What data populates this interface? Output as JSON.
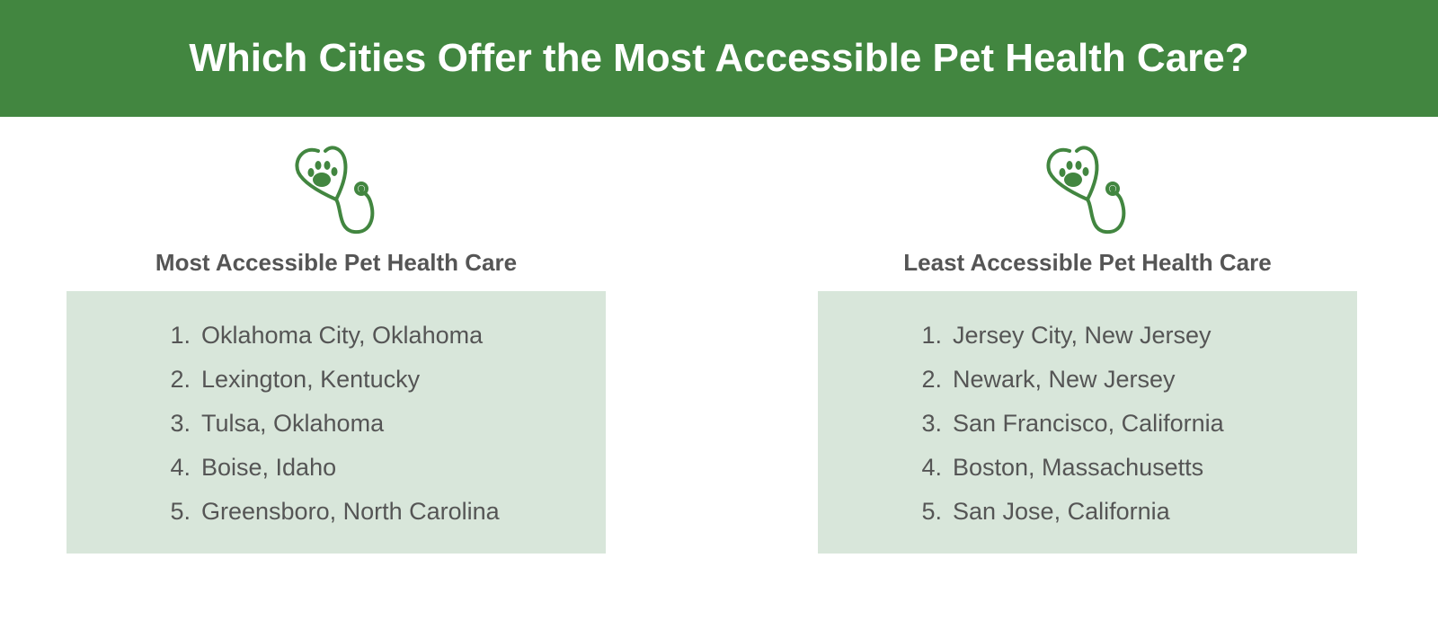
{
  "header": {
    "title": "Which Cities Offer the Most Accessible Pet Health Care?"
  },
  "panels": [
    {
      "heading": "Most Accessible Pet Health Care",
      "items": [
        {
          "rank": "1.",
          "city": "Oklahoma City, Oklahoma"
        },
        {
          "rank": "2.",
          "city": "Lexington, Kentucky"
        },
        {
          "rank": "3.",
          "city": "Tulsa, Oklahoma"
        },
        {
          "rank": "4.",
          "city": "Boise, Idaho"
        },
        {
          "rank": "5.",
          "city": "Greensboro, North Carolina"
        }
      ]
    },
    {
      "heading": "Least Accessible Pet Health Care",
      "items": [
        {
          "rank": "1.",
          "city": "Jersey City, New Jersey"
        },
        {
          "rank": "2.",
          "city": "Newark, New Jersey"
        },
        {
          "rank": "3.",
          "city": "San Francisco, California"
        },
        {
          "rank": "4.",
          "city": "Boston, Massachusetts"
        },
        {
          "rank": "5.",
          "city": "San Jose, California"
        }
      ]
    }
  ]
}
